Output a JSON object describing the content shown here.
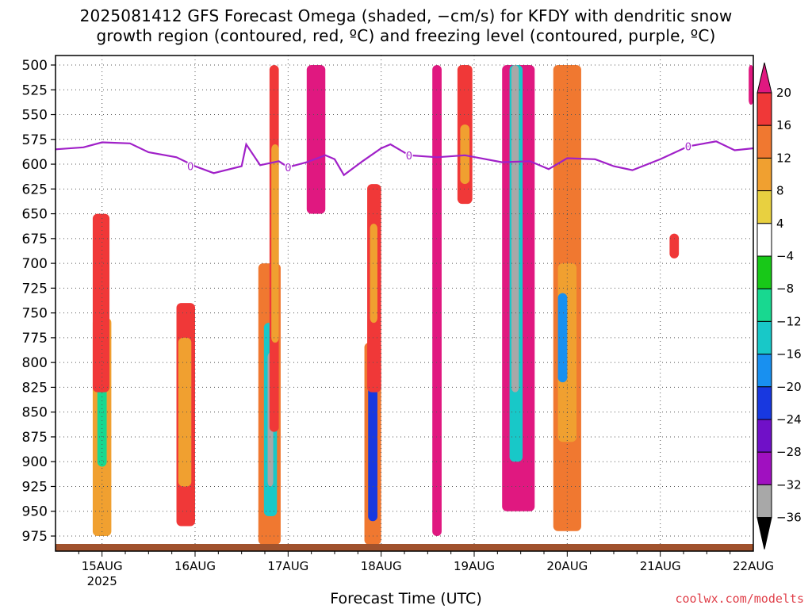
{
  "title": {
    "line1": "2025081412 GFS Forecast Omega (shaded, −cm/s) for KFDY with dendritic snow",
    "line2": "growth region (contoured, red, ºC) and freezing level (contoured, purple, ºC)"
  },
  "credit": "coolwx.com/modelts",
  "colors": {
    "freezing_line": "#a020c8",
    "dgz_line": "#d81e1e",
    "ground": "#a0522d",
    "grid": "#555555"
  },
  "chart_data": {
    "type": "heatmap",
    "title": "2025081412 GFS Forecast Omega (shaded, −cm/s) for KFDY with dendritic snow growth region (contoured, red, ºC) and freezing level (contoured, purple, ºC)",
    "xlabel": "Forecast Time (UTC)",
    "ylabel": "",
    "x_range": [
      "2025-08-14T12Z",
      "2025-08-22T00Z"
    ],
    "x_ticks": [
      {
        "label": "15AUG",
        "sub": "2025",
        "day": 15
      },
      {
        "label": "16AUG",
        "sub": "",
        "day": 16
      },
      {
        "label": "17AUG",
        "sub": "",
        "day": 17
      },
      {
        "label": "18AUG",
        "sub": "",
        "day": 18
      },
      {
        "label": "19AUG",
        "sub": "",
        "day": 19
      },
      {
        "label": "20AUG",
        "sub": "",
        "day": 20
      },
      {
        "label": "21AUG",
        "sub": "",
        "day": 21
      },
      {
        "label": "22AUG",
        "sub": "",
        "day": 22
      }
    ],
    "y_axis": {
      "reversed": true,
      "range": [
        500,
        990
      ],
      "ticks": [
        500,
        525,
        550,
        575,
        600,
        625,
        650,
        675,
        700,
        725,
        750,
        775,
        800,
        825,
        850,
        875,
        900,
        925,
        950,
        975
      ]
    },
    "grid": "dotted",
    "colorbar": {
      "labels": [
        "20",
        "16",
        "12",
        "8",
        "4",
        "−4",
        "−8",
        "−12",
        "−16",
        "−20",
        "−24",
        "−28",
        "−32",
        "−36"
      ],
      "colors": [
        "#e01880",
        "#f03838",
        "#f07830",
        "#f0a030",
        "#e8d040",
        "#ffffff",
        "#18c818",
        "#18d890",
        "#18c8c8",
        "#1890f0",
        "#1838e0",
        "#7010c8",
        "#a010c0",
        "#a8a8a8"
      ]
    },
    "freezing_level": {
      "label": "0",
      "points": [
        [
          14.5,
          585
        ],
        [
          14.8,
          583
        ],
        [
          15.0,
          578
        ],
        [
          15.3,
          579
        ],
        [
          15.5,
          588
        ],
        [
          15.8,
          593
        ],
        [
          16.0,
          602
        ],
        [
          16.2,
          609
        ],
        [
          16.5,
          602
        ],
        [
          16.55,
          580
        ],
        [
          16.7,
          601
        ],
        [
          16.9,
          597
        ],
        [
          17.0,
          603
        ],
        [
          17.2,
          598
        ],
        [
          17.4,
          591
        ],
        [
          17.5,
          595
        ],
        [
          17.6,
          611
        ],
        [
          17.8,
          597
        ],
        [
          18.0,
          584
        ],
        [
          18.1,
          580
        ],
        [
          18.3,
          591
        ],
        [
          18.6,
          593
        ],
        [
          18.9,
          591
        ],
        [
          19.3,
          598
        ],
        [
          19.6,
          597
        ],
        [
          19.8,
          605
        ],
        [
          20.0,
          594
        ],
        [
          20.3,
          595
        ],
        [
          20.5,
          602
        ],
        [
          20.7,
          606
        ],
        [
          21.0,
          595
        ],
        [
          21.3,
          582
        ],
        [
          21.6,
          577
        ],
        [
          21.8,
          586
        ],
        [
          22.0,
          584
        ]
      ]
    },
    "omega_cells": [
      {
        "t0": 14.9,
        "t1": 15.1,
        "p0": 755,
        "p1": 975,
        "c": 3
      },
      {
        "t0": 14.95,
        "t1": 15.05,
        "p0": 825,
        "p1": 905,
        "c": 7
      },
      {
        "t0": 14.9,
        "t1": 15.08,
        "p0": 650,
        "p1": 830,
        "c": 1
      },
      {
        "t0": 15.8,
        "t1": 16.0,
        "p0": 740,
        "p1": 965,
        "c": 1
      },
      {
        "t0": 15.82,
        "t1": 15.96,
        "p0": 775,
        "p1": 925,
        "c": 3
      },
      {
        "t0": 16.68,
        "t1": 16.92,
        "p0": 700,
        "p1": 985,
        "c": 2
      },
      {
        "t0": 16.74,
        "t1": 16.88,
        "p0": 760,
        "p1": 955,
        "c": 8
      },
      {
        "t0": 16.78,
        "t1": 16.84,
        "p0": 790,
        "p1": 925,
        "c": 13
      },
      {
        "t0": 16.8,
        "t1": 16.9,
        "p0": 500,
        "p1": 870,
        "c": 1
      },
      {
        "t0": 16.82,
        "t1": 16.9,
        "p0": 580,
        "p1": 780,
        "c": 3
      },
      {
        "t0": 17.2,
        "t1": 17.4,
        "p0": 500,
        "p1": 650,
        "c": 0
      },
      {
        "t0": 17.82,
        "t1": 18.0,
        "p0": 780,
        "p1": 985,
        "c": 2
      },
      {
        "t0": 17.86,
        "t1": 17.96,
        "p0": 810,
        "p1": 960,
        "c": 10
      },
      {
        "t0": 17.85,
        "t1": 18.0,
        "p0": 620,
        "p1": 830,
        "c": 1
      },
      {
        "t0": 17.88,
        "t1": 17.96,
        "p0": 660,
        "p1": 760,
        "c": 3
      },
      {
        "t0": 18.55,
        "t1": 18.65,
        "p0": 500,
        "p1": 975,
        "c": 0
      },
      {
        "t0": 18.82,
        "t1": 18.98,
        "p0": 500,
        "p1": 640,
        "c": 1
      },
      {
        "t0": 18.85,
        "t1": 18.95,
        "p0": 560,
        "p1": 620,
        "c": 3
      },
      {
        "t0": 19.3,
        "t1": 19.65,
        "p0": 500,
        "p1": 950,
        "c": 0
      },
      {
        "t0": 19.38,
        "t1": 19.52,
        "p0": 500,
        "p1": 900,
        "c": 8
      },
      {
        "t0": 19.4,
        "t1": 19.48,
        "p0": 500,
        "p1": 830,
        "c": 13
      },
      {
        "t0": 19.85,
        "t1": 20.15,
        "p0": 500,
        "p1": 970,
        "c": 2
      },
      {
        "t0": 19.9,
        "t1": 20.1,
        "p0": 700,
        "p1": 880,
        "c": 3
      },
      {
        "t0": 19.9,
        "t1": 20.0,
        "p0": 730,
        "p1": 820,
        "c": 9
      },
      {
        "t0": 21.1,
        "t1": 21.2,
        "p0": 670,
        "p1": 695,
        "c": 1
      },
      {
        "t0": 21.95,
        "t1": 22.0,
        "p0": 500,
        "p1": 540,
        "c": 0
      }
    ]
  }
}
